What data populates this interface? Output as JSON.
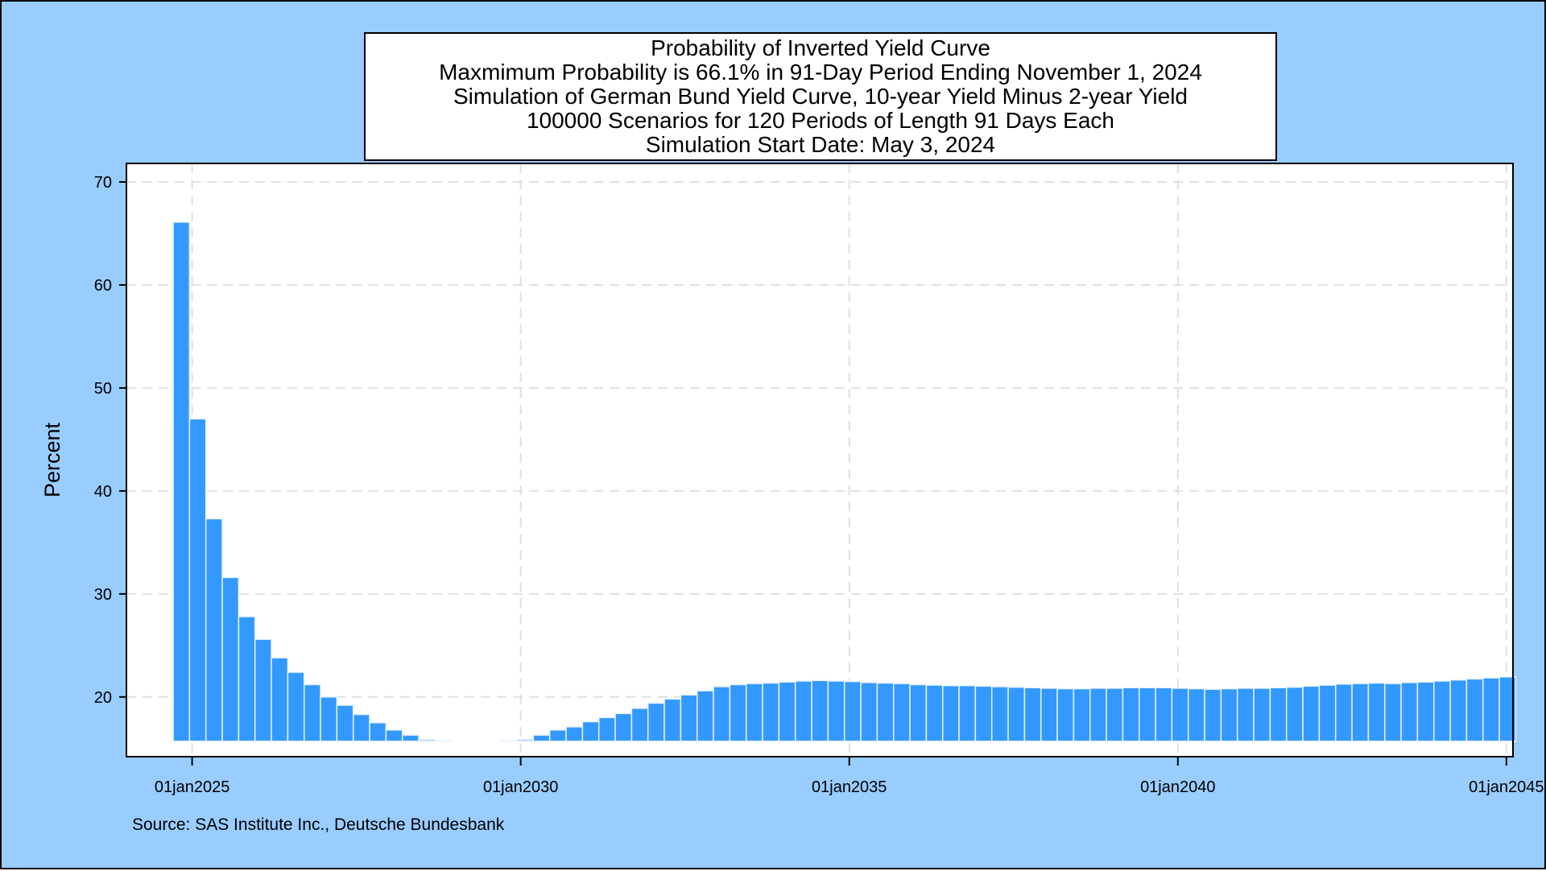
{
  "colors": {
    "background": "#99ccff",
    "plot_bg": "#ffffff",
    "bar_fill": "#3399ff",
    "bar_edge": "#eaf4ff",
    "grid": "#e0e0e0",
    "axis": "#000000"
  },
  "chart_data": {
    "type": "bar",
    "title_lines": [
      "Probability of Inverted Yield Curve",
      "Maxmimum Probability is 66.1% in 91-Day Period Ending November 1, 2024",
      "Simulation of German Bund Yield Curve, 10-year Yield Minus 2-year Yield",
      "100000 Scenarios for 120 Periods of Length 91 Days Each",
      "Simulation Start Date: May 3, 2024"
    ],
    "ylabel": "Percent",
    "xlabel": "",
    "ylim": [
      14.2,
      71.8
    ],
    "y_baseline": 15.7,
    "yticks": [
      20,
      30,
      40,
      50,
      60,
      70
    ],
    "xlim": [
      2024.0,
      2045.1
    ],
    "xticks": [
      {
        "year": 2025,
        "label": "01jan2025"
      },
      {
        "year": 2030,
        "label": "01jan2030"
      },
      {
        "year": 2035,
        "label": "01jan2035"
      },
      {
        "year": 2040,
        "label": "01jan2040"
      },
      {
        "year": 2045,
        "label": "01jan2045"
      }
    ],
    "grid": true,
    "period_years": 0.24915,
    "first_period_end": 2024.836,
    "values": [
      66.1,
      47.0,
      37.3,
      31.6,
      27.8,
      25.6,
      23.8,
      22.4,
      21.2,
      20.0,
      19.2,
      18.3,
      17.5,
      16.8,
      16.3,
      15.85,
      15.75,
      15.6,
      15.55,
      15.65,
      15.75,
      15.85,
      16.3,
      16.8,
      17.1,
      17.6,
      18.0,
      18.4,
      18.9,
      19.4,
      19.8,
      20.2,
      20.6,
      21.0,
      21.2,
      21.3,
      21.35,
      21.45,
      21.55,
      21.6,
      21.55,
      21.5,
      21.4,
      21.35,
      21.3,
      21.2,
      21.15,
      21.1,
      21.1,
      21.05,
      21.0,
      20.95,
      20.9,
      20.85,
      20.8,
      20.8,
      20.85,
      20.85,
      20.9,
      20.9,
      20.9,
      20.85,
      20.8,
      20.75,
      20.8,
      20.85,
      20.85,
      20.9,
      20.95,
      21.05,
      21.15,
      21.25,
      21.3,
      21.35,
      21.3,
      21.4,
      21.45,
      21.55,
      21.65,
      21.75,
      21.85,
      21.95
    ]
  },
  "source_note": "Source: SAS Institute Inc., Deutsche Bundesbank"
}
